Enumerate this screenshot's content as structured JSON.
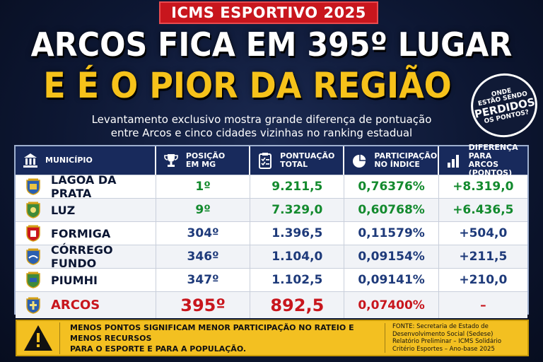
{
  "badge": "ICMS ESPORTIVO 2025",
  "headline_line1": "ARCOS FICA EM 395º LUGAR",
  "headline_line2": "E É O PIOR DA REGIÃO",
  "seal": {
    "line1": "ONDE",
    "line2": "ESTÃO SENDO",
    "line3": "PERDIDOS",
    "line4": "OS PONTOS?"
  },
  "subtitle_line1": "Levantamento exclusivo mostra grande diferença de pontuação",
  "subtitle_line2": "entre Arcos e cinco cidades vizinhas no ranking estadual",
  "table": {
    "headers": {
      "municipio": "MUNICÍPIO",
      "posicao_1": "POSIÇÃO",
      "posicao_2": "EM MG",
      "pontuacao_1": "PONTUAÇÃO",
      "pontuacao_2": "TOTAL",
      "participacao_1": "PARTICIPAÇÃO",
      "participacao_2": "NO ÍNDICE",
      "diferenca_1": "DIFERENÇA PARA",
      "diferenca_2": "ARCOS (PONTOS)"
    },
    "rows": [
      {
        "name": "LAGOA DA PRATA",
        "pos": "1º",
        "score": "9.211,5",
        "part": "0,76376%",
        "diff": "+8.319,0"
      },
      {
        "name": "LUZ",
        "pos": "9º",
        "score": "7.329,0",
        "part": "0,60768%",
        "diff": "+6.436,5"
      },
      {
        "name": "FORMIGA",
        "pos": "304º",
        "score": "1.396,5",
        "part": "0,11579%",
        "diff": "+504,0"
      },
      {
        "name": "CÓRREGO FUNDO",
        "pos": "346º",
        "score": "1.104,0",
        "part": "0,09154%",
        "diff": "+211,5"
      },
      {
        "name": "PIUMHI",
        "pos": "347º",
        "score": "1.102,5",
        "part": "0,09141%",
        "diff": "+210,0"
      },
      {
        "name": "ARCOS",
        "pos": "395º",
        "score": "892,5",
        "part": "0,07400%",
        "diff": "–"
      }
    ]
  },
  "alert": {
    "line1": "MENOS PONTOS SIGNIFICAM MENOR PARTICIPAÇÃO NO RATEIO E MENOS RECURSOS",
    "line2": "PARA O ESPORTE E PARA A POPULAÇÃO."
  },
  "source": {
    "line1": "FONTE: Secretaria de Estado de",
    "line2": "Desenvolvimento Social (Sedese)",
    "line3": "Relatório Preliminar – ICMS Solidário",
    "line4": "Critério Esportes – Ano-base 2025"
  },
  "colors": {
    "red": "#c8161d",
    "yellow": "#f6c21a",
    "navy": "#182a5c",
    "green": "#138a2e"
  },
  "icons": [
    "city-hall-icon",
    "trophy-icon",
    "clipboard-icon",
    "pie-chart-icon",
    "bar-chart-icon",
    "warning-icon",
    "city-crest-icon"
  ]
}
